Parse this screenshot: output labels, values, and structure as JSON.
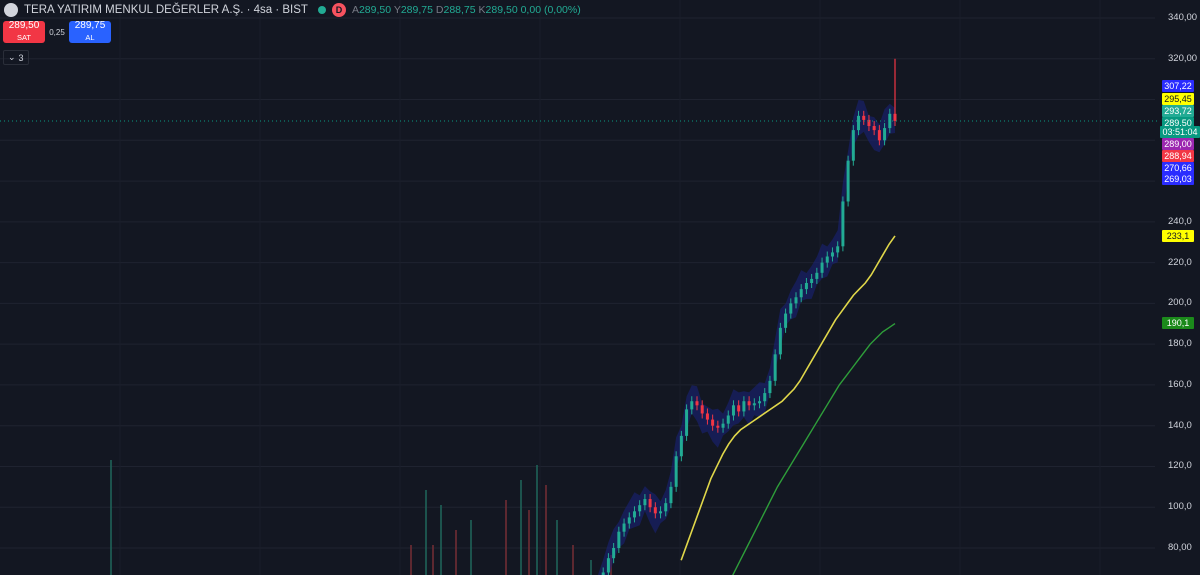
{
  "header": {
    "symbol": "TERA YATIRIM MENKUL DEĞERLER A.Ş. · 4sa · BIST",
    "d_badge": "D",
    "ohlc": {
      "open_label": "A",
      "open": "289,50",
      "high_label": "Y",
      "high": "289,75",
      "low_label": "D",
      "low": "288,75",
      "close_label": "K",
      "close": "289,50",
      "change": "0,00 (0,00%)"
    }
  },
  "trade": {
    "sell_price": "289,50",
    "sell_label": "SAT",
    "spread": "0,25",
    "buy_price": "289,75",
    "buy_label": "AL"
  },
  "indicators_toggle": {
    "count": "3"
  },
  "axis": {
    "labels": [
      "340,00",
      "320,00",
      "240,0",
      "220,0",
      "200,0",
      "180,0",
      "160,0",
      "140,0",
      "120,0",
      "100,0",
      "80,00"
    ]
  },
  "price_tags": [
    {
      "value": "307,22",
      "bg": "#2a2cff",
      "fg": "#ffffff"
    },
    {
      "value": "295,45",
      "bg": "#ffff00",
      "fg": "#131722"
    },
    {
      "value": "293,72",
      "bg": "#22ab94",
      "fg": "#ffffff"
    },
    {
      "value": "289,50",
      "bg": "#089981",
      "fg": "#ffffff"
    },
    {
      "value": "03:51:04",
      "bg": "#089981",
      "fg": "#ffffff"
    },
    {
      "value": "289,00",
      "bg": "#9c27b0",
      "fg": "#ffffff"
    },
    {
      "value": "288,94",
      "bg": "#f23645",
      "fg": "#ffffff"
    },
    {
      "value": "270,66",
      "bg": "#2a2cff",
      "fg": "#ffffff"
    },
    {
      "value": "269,03",
      "bg": "#2a2cff",
      "fg": "#ffffff"
    },
    {
      "value": "233,1",
      "bg": "#ffff00",
      "fg": "#131722"
    },
    {
      "value": "190,1",
      "bg": "#1b8a1b",
      "fg": "#ffffff"
    }
  ],
  "colors": {
    "background": "#131722",
    "up": "#22ab94",
    "down": "#f23645",
    "ma_fast": "#e0d74a",
    "ma_slow": "#2e9e3a",
    "band": "#1a237e"
  },
  "chart_data": {
    "type": "line",
    "y_axis_range": [
      75,
      345
    ],
    "last_price": 289.5,
    "series": [
      {
        "name": "",
        "role": "price",
        "values": [
          62,
          68,
          75,
          80,
          88,
          92,
          95,
          98,
          101,
          104,
          100,
          97,
          98,
          102,
          110,
          125,
          135,
          148,
          152,
          150,
          146,
          143,
          140,
          139,
          141,
          145,
          150,
          147,
          152,
          150,
          151,
          152,
          156,
          162,
          175,
          188,
          195,
          200,
          203,
          207,
          210,
          212,
          215,
          220,
          223,
          225,
          228,
          250,
          270,
          285,
          292,
          290,
          287,
          285,
          280,
          286,
          293,
          289.5
        ]
      },
      {
        "name": "",
        "role": "moving-average-fast",
        "values": [
          null,
          null,
          null,
          null,
          null,
          null,
          null,
          null,
          null,
          null,
          null,
          null,
          null,
          null,
          74,
          82,
          90,
          98,
          106,
          114,
          120,
          126,
          131,
          135,
          138,
          140,
          142,
          144,
          146,
          148,
          150,
          152,
          155,
          158,
          162,
          167,
          172,
          177,
          182,
          187,
          192,
          196,
          200,
          204,
          207,
          210,
          214,
          219,
          224,
          229,
          233.1
        ]
      },
      {
        "name": "",
        "role": "moving-average-slow",
        "values": [
          null,
          null,
          null,
          null,
          null,
          null,
          null,
          null,
          null,
          null,
          null,
          null,
          null,
          null,
          null,
          null,
          null,
          null,
          null,
          null,
          null,
          62,
          68,
          74,
          80,
          86,
          92,
          98,
          104,
          110,
          115,
          120,
          125,
          130,
          135,
          140,
          145,
          150,
          155,
          160,
          164,
          168,
          172,
          176,
          180,
          183,
          186,
          188,
          190.1
        ]
      }
    ]
  }
}
